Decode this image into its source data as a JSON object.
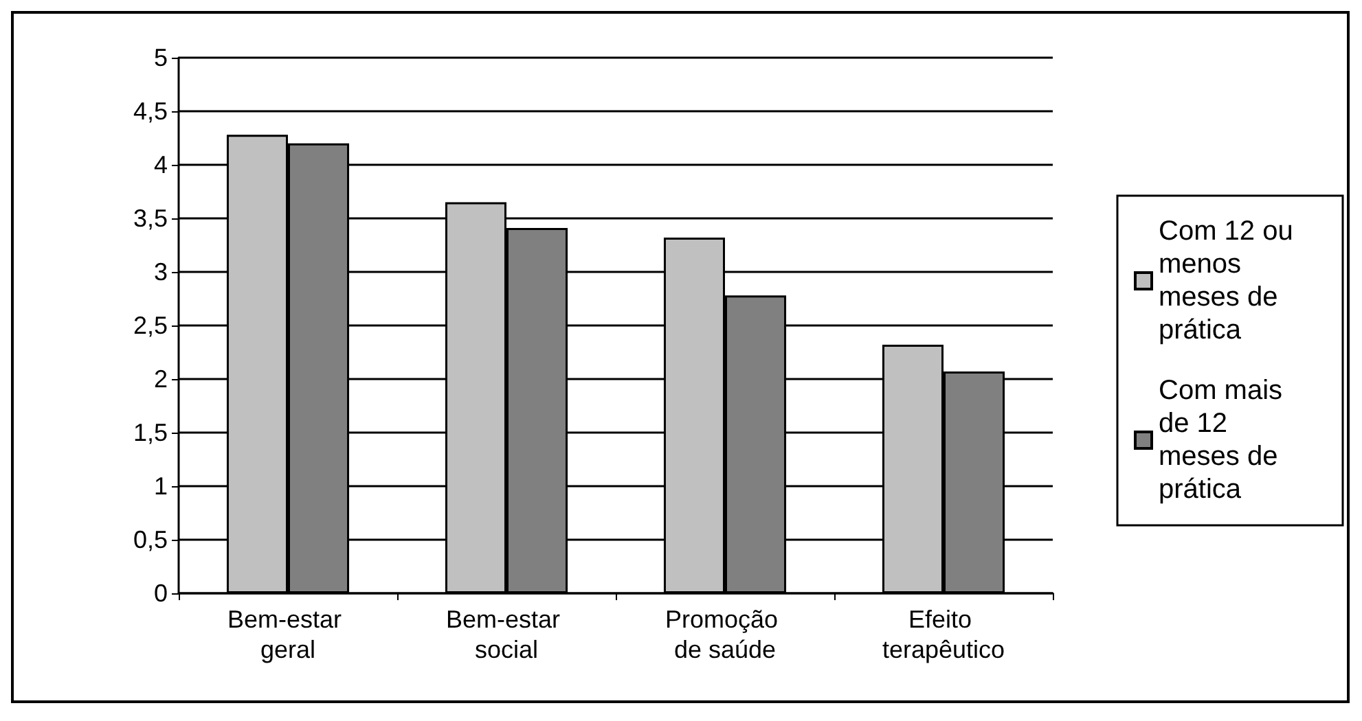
{
  "chart_data": {
    "type": "bar",
    "categories": [
      "Bem-estar geral",
      "Bem-estar social",
      "Promoção de saúde",
      "Efeito terapêutico"
    ],
    "series": [
      {
        "name": "Com 12 ou menos meses de prática",
        "color": "#c0c0c0",
        "values": [
          4.28,
          3.65,
          3.32,
          2.32
        ]
      },
      {
        "name": "Com mais de 12 meses de prática",
        "color": "#808080",
        "values": [
          4.2,
          3.41,
          2.78,
          2.07
        ]
      }
    ],
    "ylim": [
      0,
      5
    ],
    "yticks": [
      0,
      {
        "value": 0.5,
        "label": "0,5"
      },
      1,
      {
        "value": 1.5,
        "label": "1,5"
      },
      2,
      {
        "value": 2.5,
        "label": "2,5"
      },
      3,
      {
        "value": 3.5,
        "label": "3,5"
      },
      4,
      {
        "value": 4.5,
        "label": "4,5"
      },
      5
    ],
    "grid": "y",
    "legend": "right"
  }
}
